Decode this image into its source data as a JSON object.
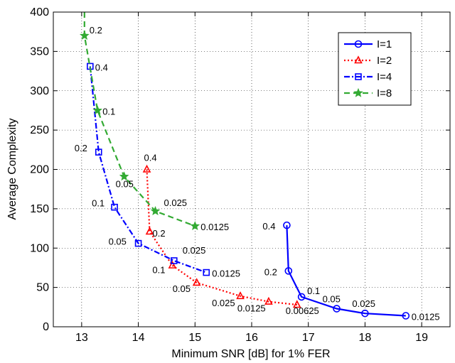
{
  "chart_data": {
    "type": "line",
    "title": "",
    "xlabel": "Minimum SNR [dB] for 1% FER",
    "ylabel": "Average Complexity",
    "xlim": [
      12.5,
      19.5
    ],
    "ylim": [
      0,
      400
    ],
    "xticks": [
      13,
      14,
      15,
      16,
      17,
      18,
      19
    ],
    "yticks": [
      0,
      50,
      100,
      150,
      200,
      250,
      300,
      350,
      400
    ],
    "grid": true,
    "legend_position": "top-right",
    "series": [
      {
        "name": "I=1",
        "color": "#0000ff",
        "line_style": "solid",
        "marker": "circle",
        "points": [
          {
            "x": 16.62,
            "y": 129,
            "label": "0.4"
          },
          {
            "x": 16.65,
            "y": 71,
            "label": "0.2"
          },
          {
            "x": 16.88,
            "y": 38,
            "label": "0.1"
          },
          {
            "x": 17.5,
            "y": 23,
            "label": "0.05"
          },
          {
            "x": 18.0,
            "y": 17,
            "label": "0.025"
          },
          {
            "x": 18.72,
            "y": 14,
            "label": "0.0125"
          }
        ]
      },
      {
        "name": "I=2",
        "color": "#ff0000",
        "line_style": "dotted",
        "marker": "triangle",
        "points": [
          {
            "x": 14.15,
            "y": 200,
            "label": "0.4"
          },
          {
            "x": 14.2,
            "y": 121,
            "label": "0.2"
          },
          {
            "x": 14.6,
            "y": 78,
            "label": "0.1"
          },
          {
            "x": 15.03,
            "y": 56,
            "label": "0.05"
          },
          {
            "x": 15.8,
            "y": 39,
            "label": "0.025"
          },
          {
            "x": 16.3,
            "y": 32,
            "label": "0.0125"
          },
          {
            "x": 16.8,
            "y": 28,
            "label": "0.00625"
          }
        ]
      },
      {
        "name": "I=4",
        "color": "#0000ff",
        "line_style": "dash-dot",
        "marker": "square",
        "points": [
          {
            "x": 13.15,
            "y": 331,
            "label": "0.4"
          },
          {
            "x": 13.3,
            "y": 222,
            "label": "0.2"
          },
          {
            "x": 13.58,
            "y": 152,
            "label": "0.1"
          },
          {
            "x": 14.0,
            "y": 106,
            "label": "0.05"
          },
          {
            "x": 14.63,
            "y": 84,
            "label": "0.025"
          },
          {
            "x": 15.2,
            "y": 69,
            "label": "0.0125"
          }
        ]
      },
      {
        "name": "I=8",
        "color": "#33aa33",
        "line_style": "dashed",
        "marker": "star",
        "points": [
          {
            "x": 13.05,
            "y": 400,
            "label": ""
          },
          {
            "x": 13.05,
            "y": 370,
            "label": "0.2"
          },
          {
            "x": 13.28,
            "y": 275,
            "label": "0.1"
          },
          {
            "x": 13.75,
            "y": 191,
            "label": "0.05"
          },
          {
            "x": 14.3,
            "y": 147,
            "label": "0.025"
          },
          {
            "x": 15.0,
            "y": 128,
            "label": "0.0125"
          }
        ]
      }
    ]
  }
}
